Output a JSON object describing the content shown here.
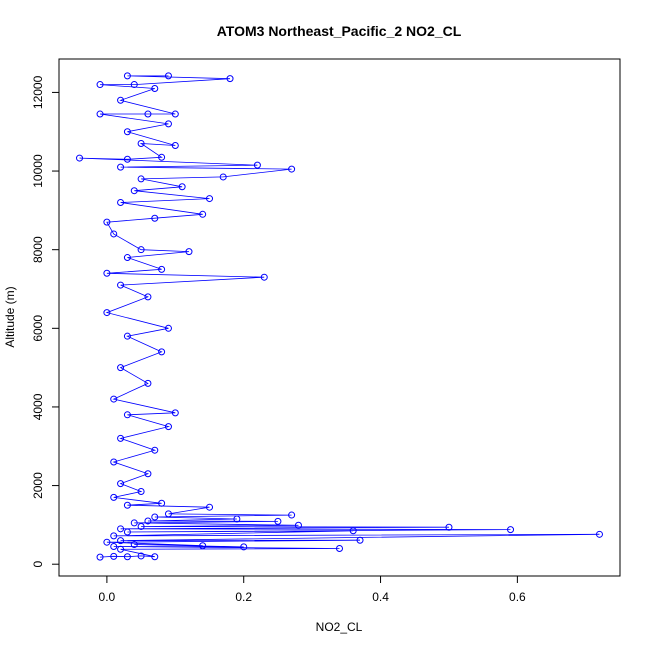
{
  "chart_data": {
    "type": "scatter",
    "title": "ATOM3 Northeast_Pacific_2 NO2_CL",
    "xlabel": "NO2_CL",
    "ylabel": "Altitude (m)",
    "xlim": [
      -0.07,
      0.75
    ],
    "ylim": [
      -300,
      12850
    ],
    "x_ticks": [
      0.0,
      0.2,
      0.4,
      0.6
    ],
    "x_tick_labels": [
      "0.0",
      "0.2",
      "0.4",
      "0.6"
    ],
    "y_ticks": [
      0,
      2000,
      4000,
      6000,
      8000,
      10000,
      12000
    ],
    "y_tick_labels": [
      "0",
      "2000",
      "4000",
      "6000",
      "8000",
      "10000",
      "12000"
    ],
    "grid": false,
    "legend": "none",
    "marker": "open-circle",
    "connected": true,
    "color": "#0000ff",
    "points": [
      {
        "x": -0.01,
        "y": 180
      },
      {
        "x": 0.01,
        "y": 200
      },
      {
        "x": 0.03,
        "y": 190
      },
      {
        "x": 0.05,
        "y": 210
      },
      {
        "x": 0.07,
        "y": 190
      },
      {
        "x": 0.02,
        "y": 380
      },
      {
        "x": 0.34,
        "y": 400
      },
      {
        "x": 0.01,
        "y": 450
      },
      {
        "x": 0.2,
        "y": 440
      },
      {
        "x": 0.04,
        "y": 500
      },
      {
        "x": 0.14,
        "y": 470
      },
      {
        "x": 0.0,
        "y": 560
      },
      {
        "x": 0.37,
        "y": 610
      },
      {
        "x": 0.02,
        "y": 600
      },
      {
        "x": 0.72,
        "y": 760
      },
      {
        "x": 0.01,
        "y": 720
      },
      {
        "x": 0.36,
        "y": 850
      },
      {
        "x": 0.03,
        "y": 820
      },
      {
        "x": 0.59,
        "y": 880
      },
      {
        "x": 0.02,
        "y": 900
      },
      {
        "x": 0.5,
        "y": 940
      },
      {
        "x": 0.05,
        "y": 960
      },
      {
        "x": 0.28,
        "y": 990
      },
      {
        "x": 0.04,
        "y": 1050
      },
      {
        "x": 0.25,
        "y": 1090
      },
      {
        "x": 0.06,
        "y": 1100
      },
      {
        "x": 0.19,
        "y": 1150
      },
      {
        "x": 0.07,
        "y": 1200
      },
      {
        "x": 0.27,
        "y": 1250
      },
      {
        "x": 0.09,
        "y": 1280
      },
      {
        "x": 0.15,
        "y": 1450
      },
      {
        "x": 0.03,
        "y": 1500
      },
      {
        "x": 0.08,
        "y": 1550
      },
      {
        "x": 0.01,
        "y": 1700
      },
      {
        "x": 0.05,
        "y": 1850
      },
      {
        "x": 0.02,
        "y": 2050
      },
      {
        "x": 0.06,
        "y": 2300
      },
      {
        "x": 0.01,
        "y": 2600
      },
      {
        "x": 0.07,
        "y": 2900
      },
      {
        "x": 0.02,
        "y": 3200
      },
      {
        "x": 0.09,
        "y": 3500
      },
      {
        "x": 0.03,
        "y": 3800
      },
      {
        "x": 0.1,
        "y": 3850
      },
      {
        "x": 0.01,
        "y": 4200
      },
      {
        "x": 0.06,
        "y": 4600
      },
      {
        "x": 0.02,
        "y": 5000
      },
      {
        "x": 0.08,
        "y": 5400
      },
      {
        "x": 0.03,
        "y": 5800
      },
      {
        "x": 0.09,
        "y": 6000
      },
      {
        "x": 0.0,
        "y": 6400
      },
      {
        "x": 0.06,
        "y": 6800
      },
      {
        "x": 0.02,
        "y": 7100
      },
      {
        "x": 0.23,
        "y": 7300
      },
      {
        "x": 0.0,
        "y": 7400
      },
      {
        "x": 0.08,
        "y": 7500
      },
      {
        "x": 0.03,
        "y": 7800
      },
      {
        "x": 0.12,
        "y": 7950
      },
      {
        "x": 0.05,
        "y": 8000
      },
      {
        "x": 0.01,
        "y": 8400
      },
      {
        "x": 0.0,
        "y": 8700
      },
      {
        "x": 0.07,
        "y": 8800
      },
      {
        "x": 0.14,
        "y": 8900
      },
      {
        "x": 0.02,
        "y": 9200
      },
      {
        "x": 0.15,
        "y": 9300
      },
      {
        "x": 0.04,
        "y": 9500
      },
      {
        "x": 0.11,
        "y": 9600
      },
      {
        "x": 0.05,
        "y": 9800
      },
      {
        "x": 0.17,
        "y": 9850
      },
      {
        "x": 0.27,
        "y": 10050
      },
      {
        "x": 0.02,
        "y": 10100
      },
      {
        "x": 0.22,
        "y": 10150
      },
      {
        "x": -0.04,
        "y": 10330
      },
      {
        "x": 0.03,
        "y": 10300
      },
      {
        "x": 0.08,
        "y": 10350
      },
      {
        "x": 0.05,
        "y": 10700
      },
      {
        "x": 0.1,
        "y": 10650
      },
      {
        "x": 0.03,
        "y": 11000
      },
      {
        "x": 0.09,
        "y": 11200
      },
      {
        "x": -0.01,
        "y": 11450
      },
      {
        "x": 0.06,
        "y": 11450
      },
      {
        "x": 0.1,
        "y": 11450
      },
      {
        "x": 0.02,
        "y": 11800
      },
      {
        "x": 0.07,
        "y": 12100
      },
      {
        "x": -0.01,
        "y": 12200
      },
      {
        "x": 0.04,
        "y": 12200
      },
      {
        "x": 0.18,
        "y": 12350
      },
      {
        "x": 0.03,
        "y": 12420
      },
      {
        "x": 0.09,
        "y": 12420
      }
    ]
  }
}
